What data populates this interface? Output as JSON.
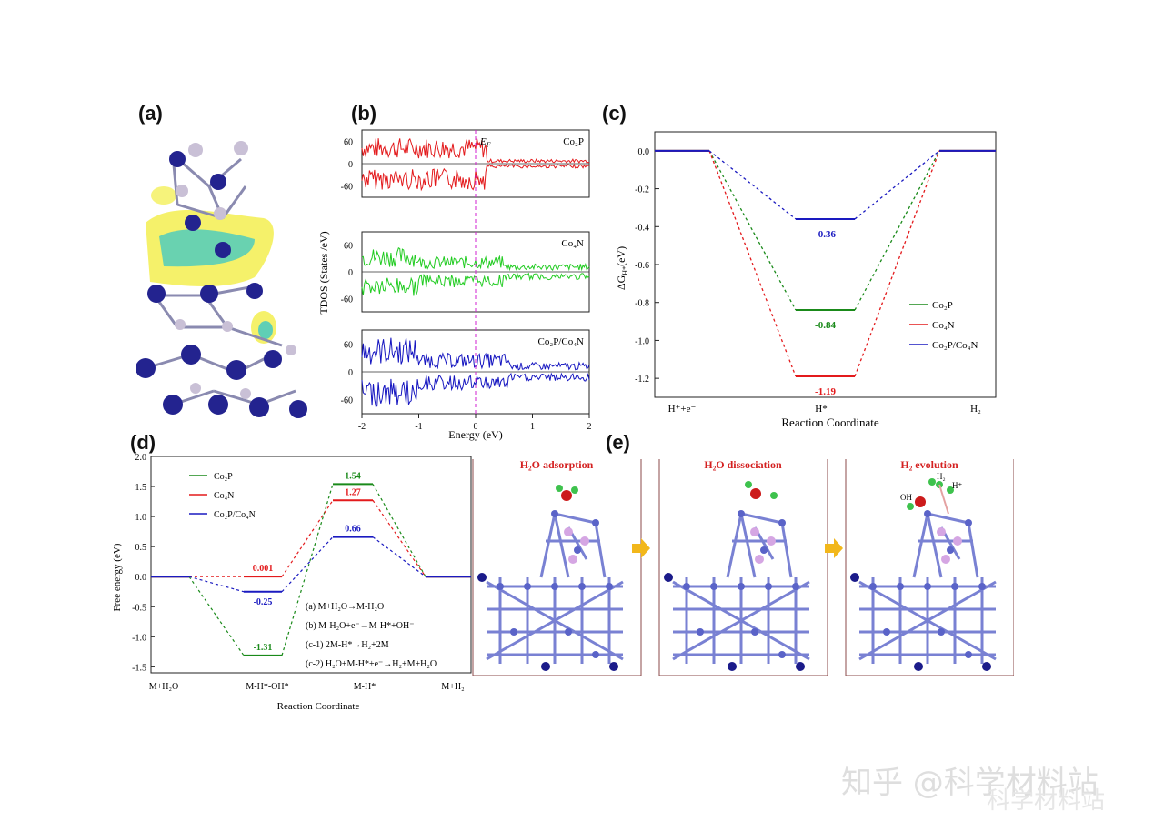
{
  "panels": {
    "a": {
      "label": "(a)"
    },
    "b": {
      "label": "(b)"
    },
    "c": {
      "label": "(c)"
    },
    "d": {
      "label": "(d)"
    },
    "e": {
      "label": "(e)"
    }
  },
  "chart_data": [
    {
      "id": "b",
      "type": "line",
      "title": "",
      "xlabel": "Energy (eV)",
      "ylabel": "TDOS (States /eV)",
      "xlim": [
        -2,
        2
      ],
      "x_ticks": [
        "-2",
        "-1",
        "0",
        "1",
        "2"
      ],
      "fermi_label": "E",
      "fermi_sub": "F",
      "fermi_x": 0,
      "subplots": [
        {
          "name": "Co₂P",
          "color": "#e31a1c",
          "ylim": [
            -90,
            90
          ],
          "y_ticks": [
            "60",
            "0",
            "-60"
          ]
        },
        {
          "name": "Co₄N",
          "color": "#22cc22",
          "ylim": [
            -90,
            90
          ],
          "y_ticks": [
            "60",
            "0",
            "-60"
          ]
        },
        {
          "name": "Co₂P/Co₄N",
          "color": "#1515c0",
          "ylim": [
            -90,
            90
          ],
          "y_ticks": [
            "60",
            "0",
            "-60"
          ]
        }
      ]
    },
    {
      "id": "c",
      "type": "line",
      "xlabel": "Reaction Coordinate",
      "ylabel": "ΔG",
      "ylabel_sub": "H*",
      "ylabel_unit": "(eV)",
      "ylim": [
        -1.3,
        0.1
      ],
      "y_ticks": [
        "0.0",
        "-0.2",
        "-0.4",
        "-0.6",
        "-0.8",
        "-1.0",
        "-1.2"
      ],
      "categories": [
        "H⁺+e⁻",
        "H*",
        "H₂"
      ],
      "series": [
        {
          "name": "Co₂P",
          "color": "#1a8a1a",
          "values": [
            0,
            -0.84,
            0
          ],
          "label": "-0.84"
        },
        {
          "name": "Co₄N",
          "color": "#e31a1c",
          "values": [
            0,
            -1.19,
            0
          ],
          "label": "-1.19"
        },
        {
          "name": "Co₂P/Co₄N",
          "color": "#1a1ac0",
          "values": [
            0,
            -0.36,
            0
          ],
          "label": "-0.36"
        }
      ],
      "legend": "bottom-right"
    },
    {
      "id": "d",
      "type": "line",
      "xlabel": "Reaction Coordinate",
      "ylabel": "Free energy (eV)",
      "ylim": [
        -1.6,
        2.0
      ],
      "y_ticks": [
        "2.0",
        "1.5",
        "1.0",
        "0.5",
        "0.0",
        "-0.5",
        "-1.0",
        "-1.5"
      ],
      "categories": [
        "M+H₂O",
        "M-H*-OH*",
        "M-H*",
        "M+H₂"
      ],
      "series": [
        {
          "name": "Co₂P",
          "color": "#1a8a1a",
          "values": [
            0,
            -1.31,
            1.54,
            0
          ],
          "labels": [
            "",
            "-1.31",
            "1.54",
            ""
          ]
        },
        {
          "name": "Co₄N",
          "color": "#e31a1c",
          "values": [
            0,
            0.001,
            1.27,
            0
          ],
          "labels": [
            "",
            "0.001",
            "1.27",
            ""
          ]
        },
        {
          "name": "Co₂P/Co₄N",
          "color": "#1a1ac0",
          "values": [
            0,
            -0.25,
            0.66,
            0
          ],
          "labels": [
            "",
            "-0.25",
            "0.66",
            ""
          ]
        }
      ],
      "legend": "top-left",
      "annotations": [
        "(a) M+H₂O→M-H₂O",
        "(b) M-H₂O+e⁻→M-H*+OH⁻",
        "(c-1) 2M-H*→H₂+2M",
        "(c-2) H₂O+M-H*+e⁻→H₂+M+H₂O"
      ]
    }
  ],
  "panel_e": {
    "titles": [
      "H₂O adsorption",
      "H₂O dissociation",
      "H₂ evolution"
    ],
    "labels": {
      "oh": "OH",
      "h2": "H₂",
      "hplus": "H⁺"
    }
  },
  "watermark": {
    "line1": "知乎 @科学材料站",
    "line2": "科学材料站"
  }
}
